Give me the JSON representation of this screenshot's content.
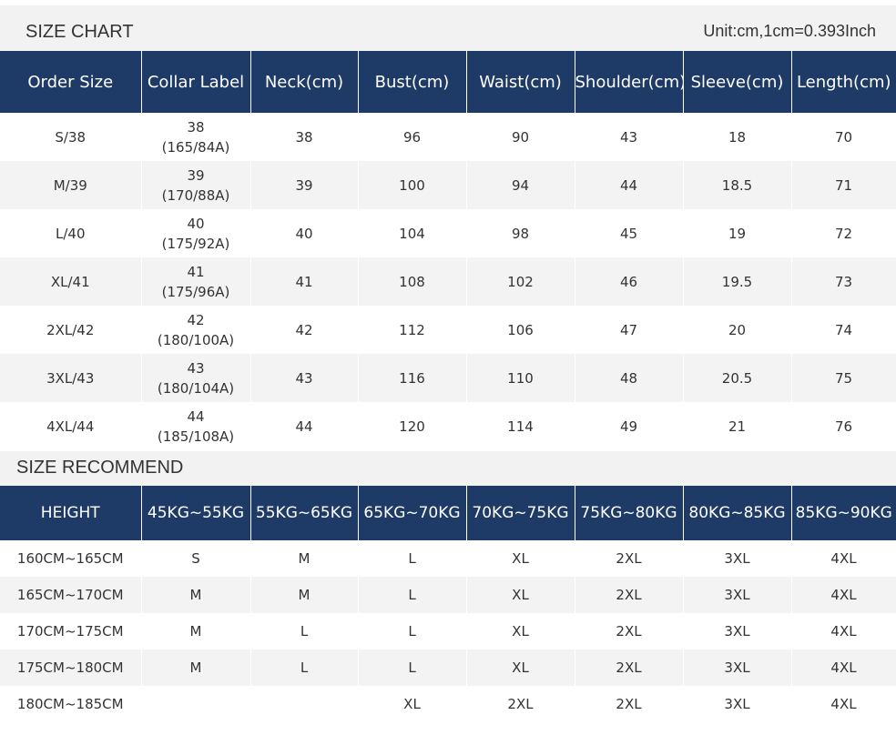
{
  "size_chart": {
    "title": "SIZE CHART",
    "unit": "Unit:cm,1cm=0.393Inch",
    "headers": [
      "Order Size",
      "Collar Label",
      "Neck(cm)",
      "Bust(cm)",
      "Waist(cm)",
      "Shoulder(cm)",
      "Sleeve(cm)",
      "Length(cm)"
    ],
    "rows": [
      {
        "order": "S/38",
        "collar": "38",
        "collar_sub": "(165/84A)",
        "neck": "38",
        "bust": "96",
        "waist": "90",
        "shoulder": "43",
        "sleeve": "18",
        "length": "70"
      },
      {
        "order": "M/39",
        "collar": "39",
        "collar_sub": "(170/88A)",
        "neck": "39",
        "bust": "100",
        "waist": "94",
        "shoulder": "44",
        "sleeve": "18.5",
        "length": "71"
      },
      {
        "order": "L/40",
        "collar": "40",
        "collar_sub": "(175/92A)",
        "neck": "40",
        "bust": "104",
        "waist": "98",
        "shoulder": "45",
        "sleeve": "19",
        "length": "72"
      },
      {
        "order": "XL/41",
        "collar": "41",
        "collar_sub": "(175/96A)",
        "neck": "41",
        "bust": "108",
        "waist": "102",
        "shoulder": "46",
        "sleeve": "19.5",
        "length": "73"
      },
      {
        "order": "2XL/42",
        "collar": "42",
        "collar_sub": "(180/100A)",
        "neck": "42",
        "bust": "112",
        "waist": "106",
        "shoulder": "47",
        "sleeve": "20",
        "length": "74"
      },
      {
        "order": "3XL/43",
        "collar": "43",
        "collar_sub": "(180/104A)",
        "neck": "43",
        "bust": "116",
        "waist": "110",
        "shoulder": "48",
        "sleeve": "20.5",
        "length": "75"
      },
      {
        "order": "4XL/44",
        "collar": "44",
        "collar_sub": "(185/108A)",
        "neck": "44",
        "bust": "120",
        "waist": "114",
        "shoulder": "49",
        "sleeve": "21",
        "length": "76"
      }
    ]
  },
  "size_recommend": {
    "title": "SIZE RECOMMEND",
    "headers": [
      "HEIGHT",
      "45KG~55KG",
      "55KG~65KG",
      "65KG~70KG",
      "70KG~75KG",
      "75KG~80KG",
      "80KG~85KG",
      "85KG~90KG"
    ],
    "rows": [
      [
        "160CM~165CM",
        "S",
        "M",
        "L",
        "XL",
        "2XL",
        "3XL",
        "4XL"
      ],
      [
        "165CM~170CM",
        "M",
        "M",
        "L",
        "XL",
        "2XL",
        "3XL",
        "4XL"
      ],
      [
        "170CM~175CM",
        "M",
        "L",
        "L",
        "XL",
        "2XL",
        "3XL",
        "4XL"
      ],
      [
        "175CM~180CM",
        "M",
        "L",
        "L",
        "XL",
        "2XL",
        "3XL",
        "4XL"
      ],
      [
        "180CM~185CM",
        "",
        "",
        "XL",
        "2XL",
        "2XL",
        "3XL",
        "4XL"
      ]
    ]
  }
}
